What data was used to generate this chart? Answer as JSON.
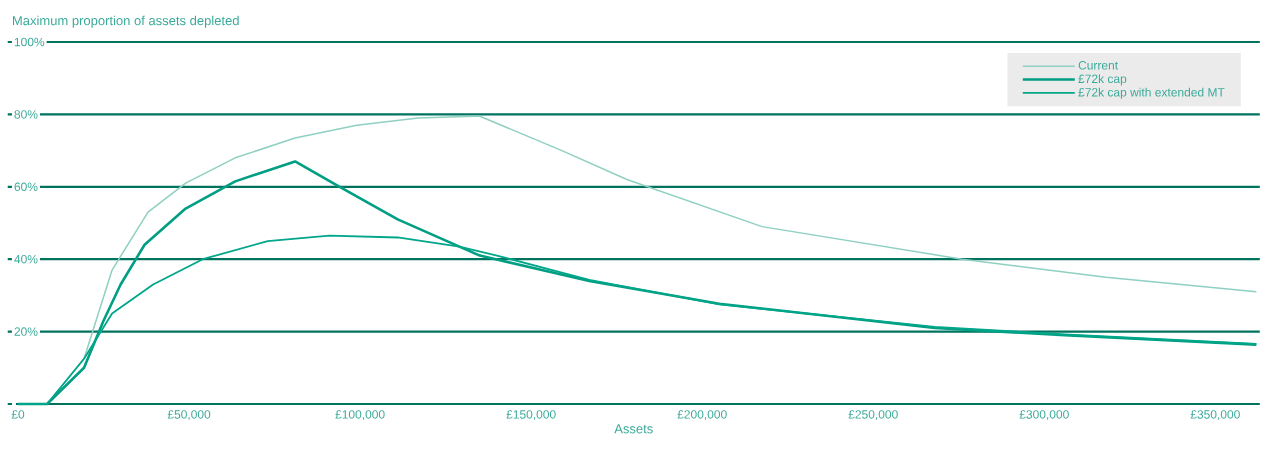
{
  "chart_data": {
    "type": "line",
    "ylabel": "Maximum proportion of assets depleted",
    "xlabel": "Assets",
    "xlim": [
      -3000,
      363000
    ],
    "xticks": [
      {
        "value": 0,
        "label": "£0"
      },
      {
        "value": 50000,
        "label": "£50,000"
      },
      {
        "value": 100000,
        "label": "£100,000"
      },
      {
        "value": 150000,
        "label": "£150,000"
      },
      {
        "value": 200000,
        "label": "£200,000"
      },
      {
        "value": 250000,
        "label": "£250,000"
      },
      {
        "value": 300000,
        "label": "£300,000"
      },
      {
        "value": 350000,
        "label": "£350,000"
      }
    ],
    "ylim": [
      0,
      100
    ],
    "yticks": [
      {
        "value": 0,
        "label": null
      },
      {
        "value": 20,
        "label": "20%"
      },
      {
        "value": 40,
        "label": "40%"
      },
      {
        "value": 60,
        "label": "60%"
      },
      {
        "value": 80,
        "label": "80%"
      },
      {
        "value": 100,
        "label": "100%"
      }
    ],
    "grid": "y",
    "legend": "top right",
    "line_style": "solid",
    "series": [
      {
        "name": "Current",
        "color": "#8fd0c2",
        "x": [
          0,
          8500,
          19300,
          27500,
          38000,
          49000,
          63500,
          81000,
          99000,
          117000,
          133000,
          135000,
          159000,
          178000,
          217500,
          276000,
          318000,
          362000
        ],
        "values": [
          0,
          0,
          12.5,
          37,
          53,
          61,
          68,
          73.5,
          77,
          79,
          79.5,
          79.5,
          70,
          62,
          49,
          40,
          35,
          31
        ]
      },
      {
        "name": "£72k cap",
        "color": "#009e82",
        "x": [
          0,
          8500,
          19300,
          25000,
          30000,
          37000,
          49000,
          63500,
          81000,
          93000,
          111000,
          135000,
          167000,
          205000,
          268000,
          306000,
          362000
        ],
        "values": [
          0,
          0,
          10,
          23,
          33,
          44,
          54,
          61.5,
          67,
          60.5,
          51,
          41,
          34,
          27.7,
          21,
          19,
          16.4
        ]
      },
      {
        "name": "£72k cap with extended MT",
        "color": "#00a68a",
        "x": [
          0,
          8500,
          19300,
          27500,
          39500,
          54000,
          73000,
          91000,
          111000,
          129000,
          140000,
          167000,
          205000,
          268000,
          306000,
          362000
        ],
        "values": [
          0,
          0,
          12.5,
          25,
          33,
          40,
          45,
          46.5,
          46,
          43.5,
          41,
          34.3,
          27.5,
          21.3,
          19.2,
          16.6
        ]
      }
    ]
  }
}
